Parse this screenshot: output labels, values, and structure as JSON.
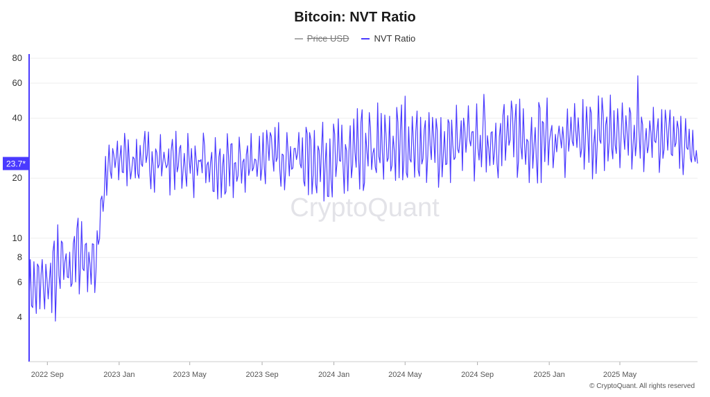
{
  "title": "Bitcoin: NVT Ratio",
  "legend": [
    {
      "name": "Price USD",
      "color": "#aaaaaa",
      "hidden": true
    },
    {
      "name": "NVT Ratio",
      "color": "#4a3aff",
      "hidden": false
    }
  ],
  "watermark": "CryptoQuant",
  "copyright": "© CryptoQuant. All rights reserved",
  "current_value_label": "23.7*",
  "colors": {
    "series": "#4a3aff",
    "axis": "#4a3aff",
    "grid": "#eeeeee"
  },
  "chart_data": {
    "type": "line",
    "yscale": "log",
    "ylim": [
      2.4,
      84
    ],
    "y_ticks": [
      4,
      6,
      8,
      10,
      20,
      40,
      60,
      80
    ],
    "x_ticks": [
      "2022 Sep",
      "2023 Jan",
      "2023 May",
      "2023 Sep",
      "2024 Jan",
      "2024 May",
      "2024 Sep",
      "2025 Jan",
      "2025 May"
    ],
    "x_range": [
      "2022-08-01",
      "2025-09-10"
    ],
    "series": [
      {
        "name": "NVT Ratio",
        "x": [
          "2022-08-01",
          "2022-09-01",
          "2022-10-01",
          "2022-11-01",
          "2022-11-20",
          "2022-12-01",
          "2022-12-15",
          "2023-01-01",
          "2023-02-01",
          "2023-03-01",
          "2023-04-01",
          "2023-05-01",
          "2023-06-01",
          "2023-07-01",
          "2023-08-01",
          "2023-09-01",
          "2023-10-01",
          "2023-11-01",
          "2023-12-01",
          "2024-01-01",
          "2024-02-01",
          "2024-03-01",
          "2024-04-01",
          "2024-05-01",
          "2024-06-01",
          "2024-07-01",
          "2024-08-01",
          "2024-09-01",
          "2024-10-01",
          "2024-11-01",
          "2024-12-01",
          "2025-01-01",
          "2025-02-01",
          "2025-03-01",
          "2025-04-01",
          "2025-05-01",
          "2025-06-01",
          "2025-07-01",
          "2025-08-01",
          "2025-09-01",
          "2025-09-10"
        ],
        "values": [
          5.5,
          6,
          7,
          8,
          6,
          14,
          22,
          25,
          24,
          25,
          24,
          24,
          22,
          21,
          23,
          26,
          27,
          26,
          25,
          24,
          24,
          26,
          27,
          29,
          28,
          28,
          29,
          30,
          31,
          31,
          32,
          31,
          30,
          30,
          32,
          31,
          33,
          35,
          30,
          28,
          23.7
        ],
        "peaks": [
          8,
          10,
          14,
          17,
          14,
          22,
          34,
          37,
          36,
          38,
          36,
          37,
          35,
          34,
          36,
          38,
          40,
          40,
          42,
          44,
          46,
          52,
          50,
          54,
          50,
          52,
          52,
          56,
          60,
          58,
          60,
          56,
          52,
          55,
          58,
          64,
          72,
          66,
          48,
          40,
          35
        ],
        "troughs": [
          4,
          3,
          3.8,
          5.5,
          4.8,
          10,
          16,
          18,
          17,
          17,
          16,
          16,
          13,
          14,
          16,
          17,
          17,
          16,
          15,
          14,
          13,
          14,
          16,
          18,
          18,
          17,
          17,
          18,
          19,
          18,
          18,
          19,
          17,
          19,
          20,
          20,
          21,
          19,
          20,
          20,
          22
        ]
      }
    ]
  }
}
